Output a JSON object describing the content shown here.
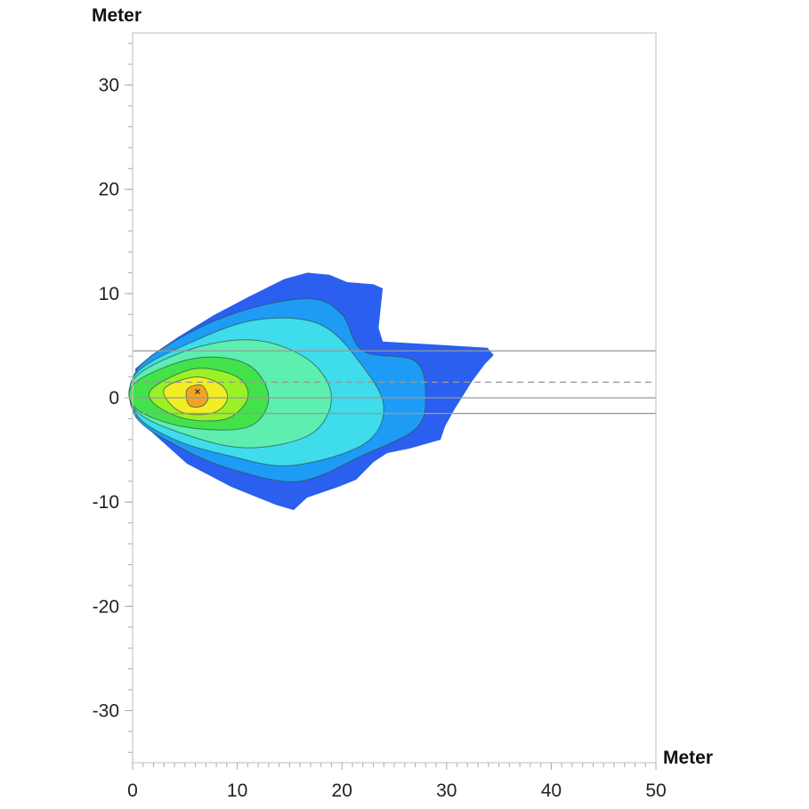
{
  "chart_data": {
    "type": "heatmap",
    "title": "",
    "xlabel": "Meter",
    "ylabel": "Meter",
    "xlim": [
      0,
      50
    ],
    "ylim": [
      -35,
      35
    ],
    "xticks": [
      0,
      10,
      20,
      30,
      40,
      50
    ],
    "yticks": [
      30,
      20,
      10,
      0,
      -10,
      -20,
      -30
    ],
    "xtick_labels": [
      "0",
      "10",
      "20",
      "30",
      "40",
      "50"
    ],
    "ytick_labels": [
      "30",
      "20",
      "10",
      "0",
      "-10",
      "-20",
      "-30"
    ],
    "grid": false,
    "reference_lines": [
      {
        "y": 4.5,
        "style": "solid"
      },
      {
        "y": 1.5,
        "style": "dashed"
      },
      {
        "y": 0,
        "style": "solid"
      },
      {
        "y": -1.5,
        "style": "solid"
      }
    ],
    "peak_marker": {
      "x": 6.2,
      "y": 0.6
    },
    "contour_levels": [
      {
        "color": "#2a5ff0",
        "polygon": [
          [
            0.26,
            1.97
          ],
          [
            0.26,
            -1.88
          ],
          [
            5.19,
            -6.32
          ],
          [
            9.44,
            -8.55
          ],
          [
            13.69,
            -10.26
          ],
          [
            15.39,
            -10.77
          ],
          [
            16.67,
            -9.57
          ],
          [
            19.64,
            -8.55
          ],
          [
            21.34,
            -7.86
          ],
          [
            23.04,
            -6.15
          ],
          [
            24.32,
            -5.3
          ],
          [
            26.45,
            -4.87
          ],
          [
            29.42,
            -4.02
          ],
          [
            29.85,
            -2.74
          ],
          [
            30.7,
            -1.2
          ],
          [
            32.4,
            1.54
          ],
          [
            33.67,
            3.25
          ],
          [
            34.5,
            4.1
          ],
          [
            33.9,
            4.8
          ],
          [
            29.0,
            5.1
          ],
          [
            23.9,
            5.4
          ],
          [
            23.5,
            6.7
          ],
          [
            23.9,
            10.5
          ],
          [
            23.0,
            10.9
          ],
          [
            20.5,
            11.1
          ],
          [
            18.8,
            11.8
          ],
          [
            16.7,
            12.0
          ],
          [
            14.5,
            11.4
          ],
          [
            11.1,
            9.7
          ],
          [
            7.7,
            7.9
          ],
          [
            4.3,
            5.8
          ],
          [
            1.8,
            4.1
          ],
          [
            0.26,
            2.8
          ]
        ]
      },
      {
        "color": "#1e9cf5",
        "polygon": [
          [
            0.3,
            2.5
          ],
          [
            5,
            6
          ],
          [
            11,
            8.5
          ],
          [
            17,
            9.5
          ],
          [
            20,
            8
          ],
          [
            22,
            4.5
          ],
          [
            27,
            3.5
          ],
          [
            28,
            0
          ],
          [
            27,
            -3
          ],
          [
            22,
            -5.5
          ],
          [
            16,
            -8
          ],
          [
            10,
            -7
          ],
          [
            5,
            -5
          ],
          [
            0.3,
            -1.8
          ]
        ]
      },
      {
        "color": "#3fdcec",
        "polygon": [
          [
            0.3,
            2.3
          ],
          [
            6,
            5.5
          ],
          [
            12,
            7.5
          ],
          [
            18,
            7
          ],
          [
            22,
            3
          ],
          [
            24,
            -1
          ],
          [
            22,
            -4.5
          ],
          [
            15,
            -6.5
          ],
          [
            9,
            -5.5
          ],
          [
            4,
            -4
          ],
          [
            0.3,
            -1.5
          ]
        ]
      },
      {
        "color": "#5eeeb0",
        "polygon": [
          [
            0.3,
            2
          ],
          [
            6,
            4.8
          ],
          [
            12,
            5.5
          ],
          [
            17,
            3.5
          ],
          [
            19,
            0
          ],
          [
            17,
            -3.5
          ],
          [
            11,
            -4.8
          ],
          [
            5,
            -3.5
          ],
          [
            0.3,
            -1.2
          ]
        ]
      },
      {
        "color": "#44e24a",
        "polygon": [
          [
            0.3,
            1.5
          ],
          [
            6,
            3.8
          ],
          [
            11,
            3.2
          ],
          [
            13,
            0
          ],
          [
            11,
            -2.8
          ],
          [
            5,
            -2.8
          ],
          [
            0.3,
            -1
          ]
        ]
      },
      {
        "color": "#9cf028",
        "polygon": [
          [
            2,
            1
          ],
          [
            6,
            2.8
          ],
          [
            10,
            2
          ],
          [
            11,
            0
          ],
          [
            9,
            -2
          ],
          [
            5,
            -2
          ],
          [
            2,
            -0.5
          ]
        ]
      },
      {
        "color": "#f2ee24",
        "polygon": [
          [
            3,
            0.8
          ],
          [
            6,
            2
          ],
          [
            8.5,
            1.2
          ],
          [
            9,
            -0.3
          ],
          [
            7.5,
            -1.5
          ],
          [
            4.5,
            -1.3
          ]
        ]
      },
      {
        "color": "#f4a424",
        "polygon": [
          [
            5.2,
            0.8
          ],
          [
            6.6,
            1.2
          ],
          [
            7.2,
            0
          ],
          [
            6.6,
            -0.8
          ],
          [
            5.4,
            -0.7
          ]
        ]
      }
    ]
  }
}
